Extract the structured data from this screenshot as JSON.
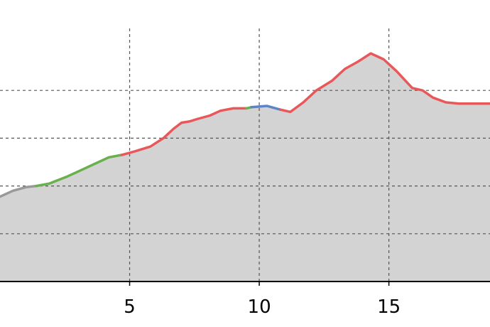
{
  "chart_data": {
    "type": "area",
    "title": "",
    "xlabel": "",
    "ylabel": "",
    "xlim": [
      0.0,
      18.9
    ],
    "ylim": [
      0,
      100
    ],
    "grid": true,
    "x_ticks": [
      {
        "value": 5,
        "label": "5"
      },
      {
        "value": 10,
        "label": "10"
      },
      {
        "value": 15,
        "label": "15"
      }
    ],
    "y_gridlines": [
      20,
      40,
      60,
      80
    ],
    "colors": {
      "fill": "#d3d3d3",
      "grid": "#555555",
      "axis": "#000000",
      "gray": "#999999",
      "green": "#6ab04c",
      "blue": "#5b85c8",
      "red": "#e8585a"
    },
    "series": [
      {
        "color_key": "gray",
        "x": [
          0.0,
          0.5,
          1.0,
          1.4
        ],
        "y": [
          35.5,
          38.0,
          39.5,
          40.0
        ]
      },
      {
        "color_key": "green",
        "x": [
          1.4,
          1.9,
          2.6,
          3.1,
          3.6,
          4.2,
          4.7
        ],
        "y": [
          40.0,
          41.0,
          44.0,
          46.5,
          49.0,
          52.0,
          53.0
        ]
      },
      {
        "color_key": "red",
        "x": [
          4.7,
          5.2,
          5.8,
          6.3,
          6.7,
          7.0,
          7.3,
          7.6,
          8.1,
          8.5,
          9.0,
          9.5
        ],
        "y": [
          53.0,
          54.5,
          56.5,
          60.0,
          64.0,
          66.5,
          67.0,
          68.0,
          69.5,
          71.5,
          72.5,
          72.5
        ]
      },
      {
        "color_key": "green",
        "x": [
          9.5,
          9.6,
          9.7
        ],
        "y": [
          72.5,
          72.7,
          73.0
        ]
      },
      {
        "color_key": "blue",
        "x": [
          9.7,
          10.3,
          10.8
        ],
        "y": [
          73.0,
          73.5,
          72.0
        ]
      },
      {
        "color_key": "red",
        "x": [
          10.8,
          11.2,
          11.7,
          12.2,
          12.8,
          13.3,
          13.8,
          14.3,
          14.8,
          15.3,
          15.9,
          16.3,
          16.7,
          17.2,
          17.7,
          18.2,
          18.9
        ],
        "y": [
          72.0,
          71.0,
          75.0,
          80.0,
          84.0,
          89.0,
          92.0,
          95.5,
          93.0,
          88.0,
          81.0,
          80.0,
          77.0,
          75.0,
          74.5,
          74.5,
          74.5
        ]
      }
    ]
  }
}
